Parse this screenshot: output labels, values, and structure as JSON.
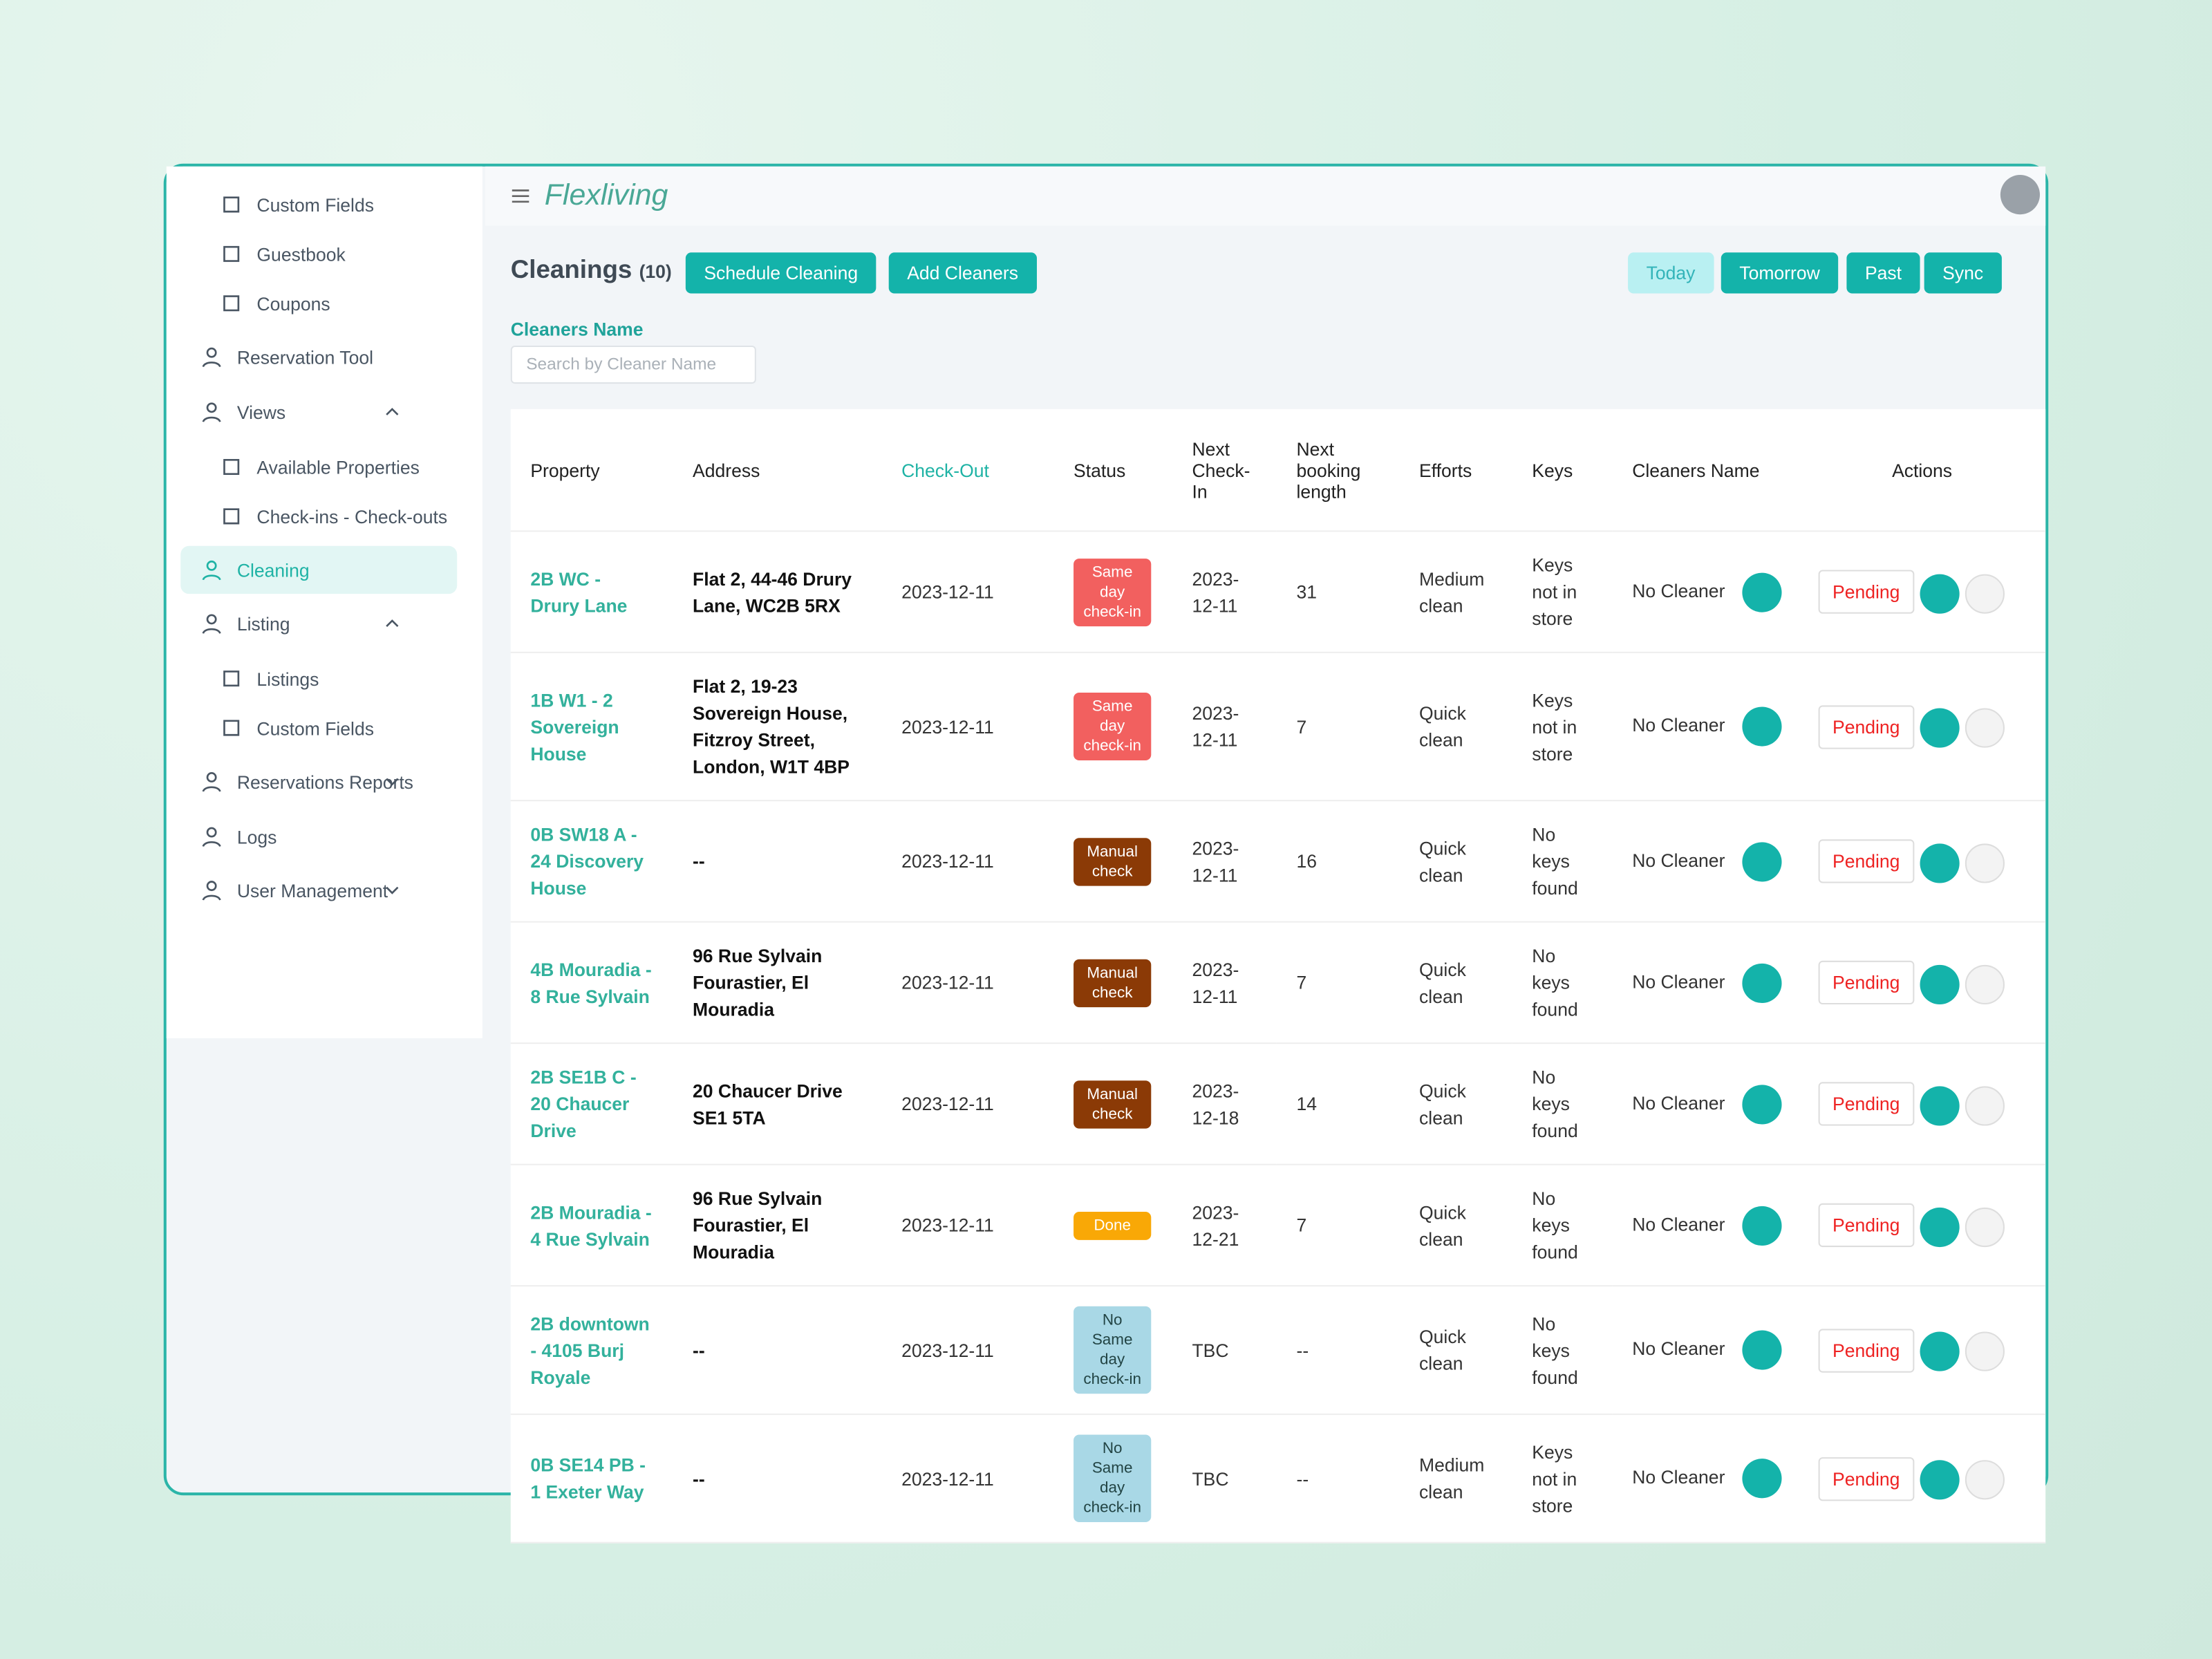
{
  "sidebar": {
    "items": [
      {
        "label": "Custom Fields",
        "level": 2
      },
      {
        "label": "Guestbook",
        "level": 2
      },
      {
        "label": "Coupons",
        "level": 2
      },
      {
        "label": "Reservation Tool",
        "level": 1
      },
      {
        "label": "Views",
        "level": 1,
        "chevron": "up"
      },
      {
        "label": "Available Properties",
        "level": 2
      },
      {
        "label": "Check-ins - Check-outs",
        "level": 2
      },
      {
        "label": "Cleaning",
        "level": 1,
        "active": true
      },
      {
        "label": "Listing",
        "level": 1,
        "chevron": "up"
      },
      {
        "label": "Listings",
        "level": 2
      },
      {
        "label": "Custom Fields",
        "level": 2
      },
      {
        "label": "Reservations Reports",
        "level": 1,
        "chevron": "down"
      },
      {
        "label": "Logs",
        "level": 1
      },
      {
        "label": "User Management",
        "level": 1,
        "chevron": "down"
      }
    ]
  },
  "header": {
    "brand": "Flexliving"
  },
  "toolbar": {
    "title": "Cleanings",
    "count": "(10)",
    "buttons": [
      "Schedule Cleaning",
      "Add Cleaners"
    ],
    "filters": [
      "Today",
      "Tomorrow",
      "Past",
      "Sync"
    ]
  },
  "filter": {
    "label": "Cleaners Name",
    "placeholder": "Search by Cleaner Name"
  },
  "table": {
    "columns": [
      "Property",
      "Address",
      "Check-Out",
      "Status",
      "Next Check-In",
      "Next booking length",
      "Efforts",
      "Keys",
      "Cleaners Name",
      "Actions"
    ],
    "rows": [
      {
        "property": "2B WC - Drury Lane",
        "address": "Flat 2, 44-46 Drury Lane, WC2B 5RX",
        "checkout": "2023-12-11",
        "status": "Same day check-in",
        "status_color": "#f2605f",
        "next_checkin": "2023-12-11",
        "length": "31",
        "efforts": "Medium clean",
        "keys": "Keys not in store",
        "cleaner": "No Cleaner",
        "state": "Pending"
      },
      {
        "property": "1B W1 - 2 Sovereign House",
        "address": "Flat 2, 19-23 Sovereign House, Fitzroy Street, London, W1T 4BP",
        "checkout": "2023-12-11",
        "status": "Same day check-in",
        "status_color": "#f2605f",
        "next_checkin": "2023-12-11",
        "length": "7",
        "efforts": "Quick clean",
        "keys": "Keys not in store",
        "cleaner": "No Cleaner",
        "state": "Pending"
      },
      {
        "property": "0B SW18 A - 24 Discovery House",
        "address": "--",
        "checkout": "2023-12-11",
        "status": "Manual check",
        "status_color": "#8b3a06",
        "next_checkin": "2023-12-11",
        "length": "16",
        "efforts": "Quick clean",
        "keys": "No keys found",
        "cleaner": "No Cleaner",
        "state": "Pending"
      },
      {
        "property": "4B Mouradia - 8 Rue Sylvain",
        "address": "96 Rue Sylvain Fourastier, El Mouradia",
        "checkout": "2023-12-11",
        "status": "Manual check",
        "status_color": "#8b3a06",
        "next_checkin": "2023-12-11",
        "length": "7",
        "efforts": "Quick clean",
        "keys": "No keys found",
        "cleaner": "No Cleaner",
        "state": "Pending"
      },
      {
        "property": "2B SE1B C - 20 Chaucer Drive",
        "address": "20 Chaucer Drive SE1 5TA",
        "checkout": "2023-12-11",
        "status": "Manual check",
        "status_color": "#8b3a06",
        "next_checkin": "2023-12-18",
        "length": "14",
        "efforts": "Quick clean",
        "keys": "No keys found",
        "cleaner": "No Cleaner",
        "state": "Pending"
      },
      {
        "property": "2B Mouradia - 4 Rue Sylvain",
        "address": "96 Rue Sylvain Fourastier, El Mouradia",
        "checkout": "2023-12-11",
        "status": "Done",
        "status_color": "#f9a806",
        "next_checkin": "2023-12-21",
        "length": "7",
        "efforts": "Quick clean",
        "keys": "No keys found",
        "cleaner": "No Cleaner",
        "state": "Pending"
      },
      {
        "property": "2B downtown - 4105 Burj Royale",
        "address": "--",
        "checkout": "2023-12-11",
        "status": "No Same day check-in",
        "status_color": "#a9d8e6",
        "next_checkin": "TBC",
        "length": "--",
        "efforts": "Quick clean",
        "keys": "No keys found",
        "cleaner": "No Cleaner",
        "state": "Pending"
      },
      {
        "property": "0B SE14 PB - 1 Exeter Way",
        "address": "--",
        "checkout": "2023-12-11",
        "status": "No Same day check-in",
        "status_color": "#a9d8e6",
        "next_checkin": "TBC",
        "length": "--",
        "efforts": "Medium clean",
        "keys": "Keys not in store",
        "cleaner": "No Cleaner",
        "state": "Pending"
      }
    ]
  }
}
